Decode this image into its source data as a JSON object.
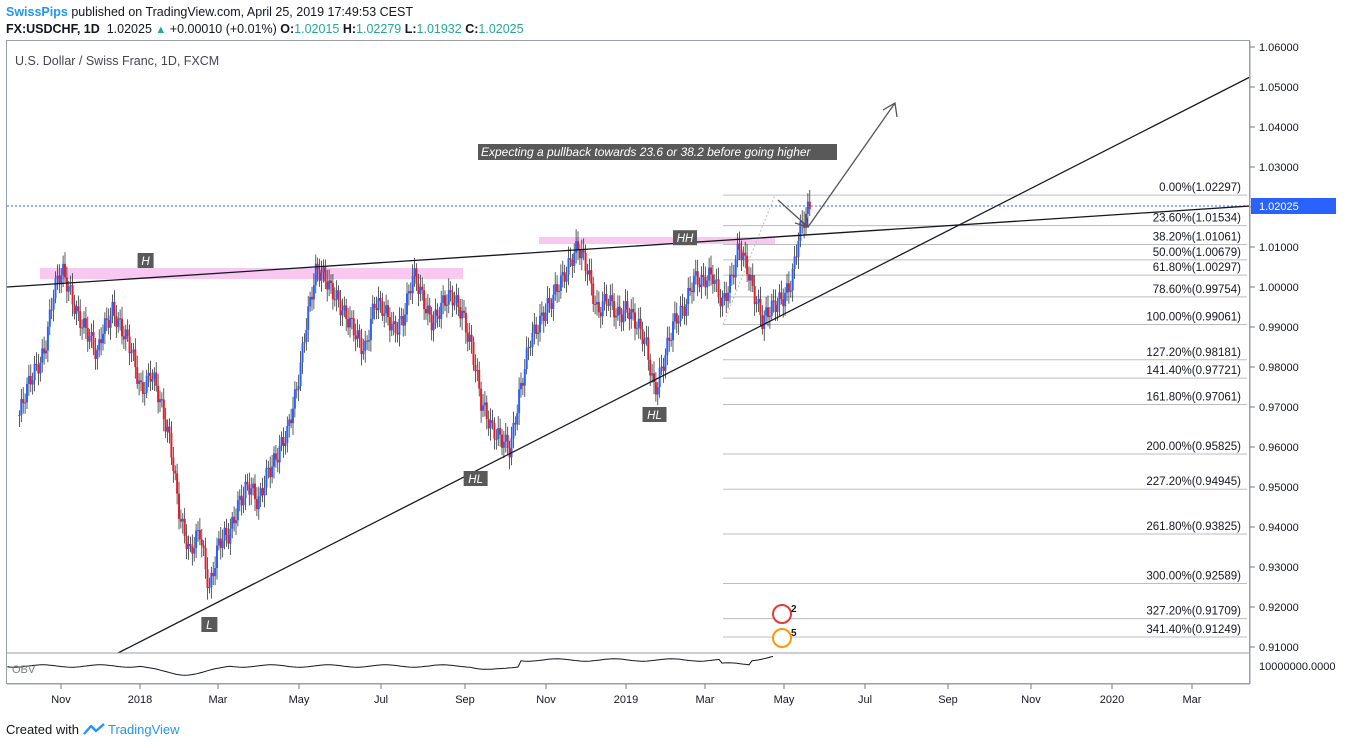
{
  "header": {
    "author": "SwissPips",
    "published": "published on TradingView.com, April 25, 2019 17:49:53 CEST",
    "symbol": "FX:USDCHF, 1D",
    "last": "1.02025",
    "change": "+0.00010 (+0.01%)",
    "open_label": "O:",
    "open": "1.02015",
    "high_label": "H:",
    "high": "1.02279",
    "low_label": "L:",
    "low": "1.01932",
    "close_label": "C:",
    "close": "1.02025"
  },
  "chart_title": "U.S. Dollar / Swiss Franc, 1D, FXCM",
  "footer": {
    "created_with": "Created with",
    "brand": "TradingView"
  },
  "colors": {
    "up": "#2962ff",
    "down": "#e0202b",
    "fib_zone": "#f8c8f0",
    "price_tag": "#2962ff",
    "label_box": "#595959"
  },
  "chart_data": {
    "type": "candlestick",
    "title": "U.S. Dollar / Swiss Franc, 1D, FXCM",
    "ylim": [
      0.905,
      1.0605
    ],
    "y_ticks": [
      "1.06000",
      "1.05000",
      "1.04000",
      "1.03000",
      "1.02000",
      "1.01000",
      "1.00000",
      "0.99000",
      "0.98000",
      "0.97000",
      "0.96000",
      "0.95000",
      "0.94000",
      "0.93000",
      "0.92000",
      "0.91000"
    ],
    "x_ticks": [
      "Nov",
      "2018",
      "Mar",
      "May",
      "Jul",
      "Sep",
      "Nov",
      "2019",
      "Mar",
      "May",
      "Jul",
      "Sep",
      "Nov",
      "2020",
      "Mar"
    ],
    "last_price": "1.02025",
    "fib_levels": [
      {
        "label": "0.00%(1.02297)",
        "value": 1.02297
      },
      {
        "label": "23.60%(1.01534)",
        "value": 1.01534
      },
      {
        "label": "38.20%(1.01061)",
        "value": 1.01061
      },
      {
        "label": "50.00%(1.00679)",
        "value": 1.00679
      },
      {
        "label": "61.80%(1.00297)",
        "value": 1.00297
      },
      {
        "label": "78.60%(0.99754)",
        "value": 0.99754
      },
      {
        "label": "100.00%(0.99061)",
        "value": 0.99061
      },
      {
        "label": "127.20%(0.98181)",
        "value": 0.98181
      },
      {
        "label": "141.40%(0.97721)",
        "value": 0.97721
      },
      {
        "label": "161.80%(0.97061)",
        "value": 0.97061
      },
      {
        "label": "200.00%(0.95825)",
        "value": 0.95825
      },
      {
        "label": "227.20%(0.94945)",
        "value": 0.94945
      },
      {
        "label": "261.80%(0.93825)",
        "value": 0.93825
      },
      {
        "label": "300.00%(0.92589)",
        "value": 0.92589
      },
      {
        "label": "327.20%(0.91709)",
        "value": 0.91709
      },
      {
        "label": "341.40%(0.91249)",
        "value": 0.91249
      }
    ],
    "swing_labels": [
      {
        "text": "H",
        "date": "2018-01",
        "price": 1.0065
      },
      {
        "text": "L",
        "date": "2018-02-16",
        "price": 0.9155
      },
      {
        "text": "HL",
        "date": "2018-08-27",
        "price": 0.952
      },
      {
        "text": "HH",
        "date": "2019-01-25",
        "price": 1.0122
      },
      {
        "text": "HL",
        "date": "2019-01-03",
        "price": 0.968
      }
    ],
    "annotation": "Expecting a pullback towards 23.6 or 38.2 before going higher",
    "indicator": {
      "name": "OBV",
      "scale_label": "10000000.0000"
    },
    "event_badges": [
      {
        "count": "2"
      },
      {
        "count": "5"
      }
    ],
    "price_path": [
      [
        "2017-10-02",
        0.968
      ],
      [
        "2017-10-10",
        0.976
      ],
      [
        "2017-10-20",
        0.985
      ],
      [
        "2017-10-27",
        0.999
      ],
      [
        "2017-11-02",
        1.003
      ],
      [
        "2017-11-08",
        0.999
      ],
      [
        "2017-11-13",
        0.994
      ],
      [
        "2017-11-20",
        0.988
      ],
      [
        "2017-11-27",
        0.982
      ],
      [
        "2017-12-01",
        0.99
      ],
      [
        "2017-12-08",
        0.995
      ],
      [
        "2017-12-15",
        0.988
      ],
      [
        "2017-12-22",
        0.984
      ],
      [
        "2017-12-29",
        0.975
      ],
      [
        "2018-01-05",
        0.978
      ],
      [
        "2018-01-12",
        0.97
      ],
      [
        "2018-01-19",
        0.962
      ],
      [
        "2018-01-26",
        0.942
      ],
      [
        "2018-02-02",
        0.932
      ],
      [
        "2018-02-09",
        0.94
      ],
      [
        "2018-02-16",
        0.925
      ],
      [
        "2018-02-23",
        0.935
      ],
      [
        "2018-03-02",
        0.938
      ],
      [
        "2018-03-09",
        0.947
      ],
      [
        "2018-03-16",
        0.95
      ],
      [
        "2018-03-23",
        0.945
      ],
      [
        "2018-03-30",
        0.955
      ],
      [
        "2018-04-06",
        0.958
      ],
      [
        "2018-04-13",
        0.962
      ],
      [
        "2018-04-20",
        0.975
      ],
      [
        "2018-04-27",
        0.992
      ],
      [
        "2018-05-04",
        1.003
      ],
      [
        "2018-05-11",
        1.002
      ],
      [
        "2018-05-18",
        0.999
      ],
      [
        "2018-05-25",
        0.992
      ],
      [
        "2018-06-01",
        0.988
      ],
      [
        "2018-06-08",
        0.985
      ],
      [
        "2018-06-15",
        0.996
      ],
      [
        "2018-06-22",
        0.993
      ],
      [
        "2018-06-29",
        0.99
      ],
      [
        "2018-07-06",
        0.993
      ],
      [
        "2018-07-13",
        1.002
      ],
      [
        "2018-07-20",
        0.997
      ],
      [
        "2018-07-27",
        0.992
      ],
      [
        "2018-08-03",
        0.995
      ],
      [
        "2018-08-10",
        0.997
      ],
      [
        "2018-08-17",
        0.995
      ],
      [
        "2018-08-24",
        0.985
      ],
      [
        "2018-08-31",
        0.97
      ],
      [
        "2018-09-07",
        0.966
      ],
      [
        "2018-09-14",
        0.963
      ],
      [
        "2018-09-21",
        0.958
      ],
      [
        "2018-09-28",
        0.974
      ],
      [
        "2018-10-05",
        0.988
      ],
      [
        "2018-10-12",
        0.99
      ],
      [
        "2018-10-19",
        0.995
      ],
      [
        "2018-10-26",
        1.002
      ],
      [
        "2018-11-02",
        1.005
      ],
      [
        "2018-11-09",
        1.009
      ],
      [
        "2018-11-16",
        1.005
      ],
      [
        "2018-11-23",
        0.994
      ],
      [
        "2018-11-30",
        0.996
      ],
      [
        "2018-12-07",
        0.993
      ],
      [
        "2018-12-14",
        0.996
      ],
      [
        "2018-12-21",
        0.99
      ],
      [
        "2018-12-28",
        0.985
      ],
      [
        "2019-01-03",
        0.975
      ],
      [
        "2019-01-10",
        0.982
      ],
      [
        "2019-01-17",
        0.99
      ],
      [
        "2019-01-24",
        0.995
      ],
      [
        "2019-01-31",
        1.003
      ],
      [
        "2019-02-07",
        1.0
      ],
      [
        "2019-02-14",
        1.003
      ],
      [
        "2019-02-21",
        0.997
      ],
      [
        "2019-02-28",
        1.002
      ],
      [
        "2019-03-05",
        1.009
      ],
      [
        "2019-03-11",
        1.005
      ],
      [
        "2019-03-18",
        0.997
      ],
      [
        "2019-03-22",
        0.991
      ],
      [
        "2019-03-29",
        0.994
      ],
      [
        "2019-04-05",
        0.998
      ],
      [
        "2019-04-12",
        1.002
      ],
      [
        "2019-04-17",
        1.012
      ],
      [
        "2019-04-22",
        1.017
      ],
      [
        "2019-04-25",
        1.0202
      ]
    ]
  }
}
